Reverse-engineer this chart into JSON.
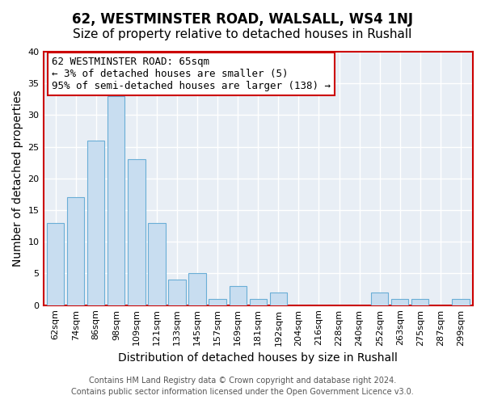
{
  "title": "62, WESTMINSTER ROAD, WALSALL, WS4 1NJ",
  "subtitle": "Size of property relative to detached houses in Rushall",
  "xlabel": "Distribution of detached houses by size in Rushall",
  "ylabel": "Number of detached properties",
  "bar_color": "#c8ddf0",
  "bar_edge_color": "#6aaed6",
  "highlight_color": "#cc0000",
  "background_color": "#e8eef5",
  "categories": [
    "62sqm",
    "74sqm",
    "86sqm",
    "98sqm",
    "109sqm",
    "121sqm",
    "133sqm",
    "145sqm",
    "157sqm",
    "169sqm",
    "181sqm",
    "192sqm",
    "204sqm",
    "216sqm",
    "228sqm",
    "240sqm",
    "252sqm",
    "263sqm",
    "275sqm",
    "287sqm",
    "299sqm"
  ],
  "values": [
    13,
    17,
    26,
    33,
    23,
    13,
    4,
    5,
    1,
    3,
    1,
    2,
    0,
    0,
    0,
    0,
    2,
    1,
    1,
    0,
    1
  ],
  "ylim": [
    0,
    40
  ],
  "yticks": [
    0,
    5,
    10,
    15,
    20,
    25,
    30,
    35,
    40
  ],
  "annotation_line1": "62 WESTMINSTER ROAD: 65sqm",
  "annotation_line2": "← 3% of detached houses are smaller (5)",
  "annotation_line3": "95% of semi-detached houses are larger (138) →",
  "footer_line1": "Contains HM Land Registry data © Crown copyright and database right 2024.",
  "footer_line2": "Contains public sector information licensed under the Open Government Licence v3.0.",
  "title_fontsize": 12,
  "subtitle_fontsize": 11,
  "axis_label_fontsize": 10,
  "tick_fontsize": 8,
  "annotation_fontsize": 9,
  "footer_fontsize": 7
}
